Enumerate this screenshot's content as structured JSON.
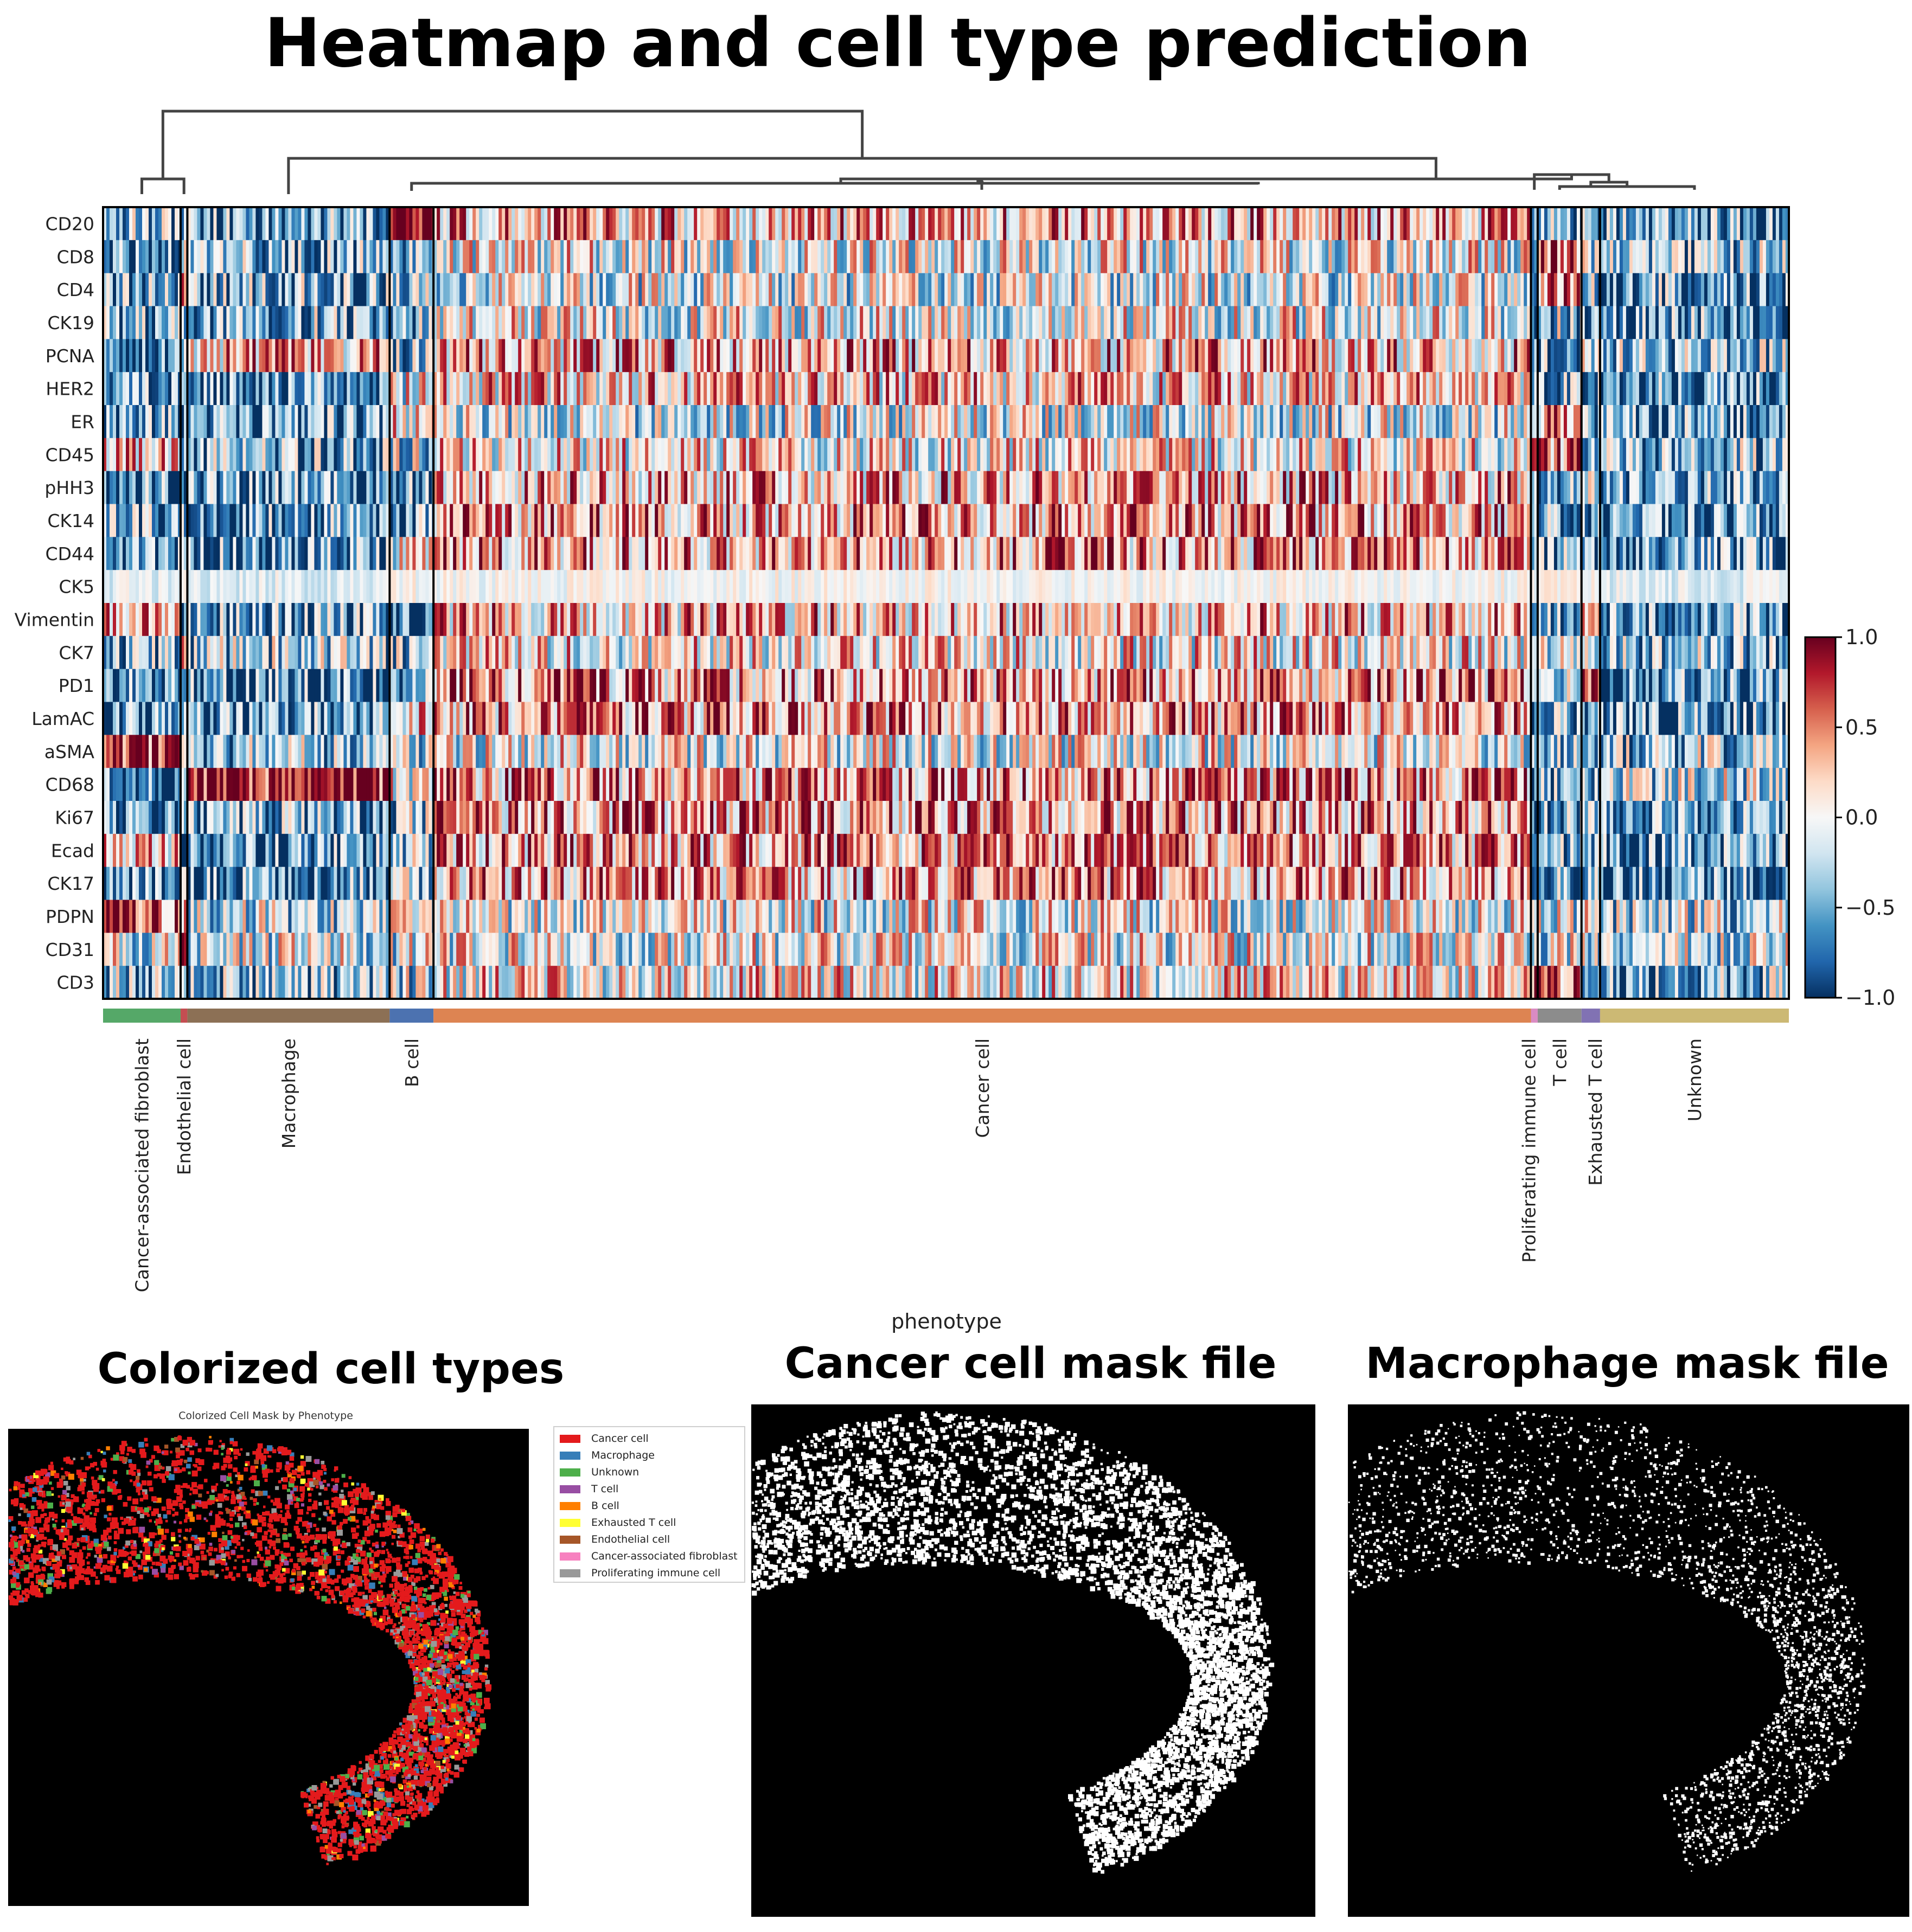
{
  "title": "Heatmap and cell type prediction",
  "chart_data": {
    "type": "heatmap",
    "rows": [
      "CD20",
      "CD8",
      "CD4",
      "CK19",
      "PCNA",
      "HER2",
      "ER",
      "CD45",
      "pHH3",
      "CK14",
      "CD44",
      "CK5",
      "Vimentin",
      "CK7",
      "PD1",
      "LamAC",
      "aSMA",
      "CD68",
      "Ki67",
      "Ecad",
      "CK17",
      "PDPN",
      "CD31",
      "CD3"
    ],
    "xlabel": "phenotype",
    "groups": [
      {
        "name": "Cancer-associated fibroblast",
        "fraction": 0.046,
        "color": "#55a868"
      },
      {
        "name": "Endothelial cell",
        "fraction": 0.004,
        "color": "#c44e52"
      },
      {
        "name": "Macrophage",
        "fraction": 0.12,
        "color": "#8c7055"
      },
      {
        "name": "B cell",
        "fraction": 0.026,
        "color": "#4c72b0"
      },
      {
        "name": "Cancer cell",
        "fraction": 0.651,
        "color": "#dd8452"
      },
      {
        "name": "Proliferating immune cell",
        "fraction": 0.004,
        "color": "#da8bc3"
      },
      {
        "name": "T cell",
        "fraction": 0.026,
        "color": "#8c8c8c"
      },
      {
        "name": "Exhausted T cell",
        "fraction": 0.011,
        "color": "#8172b3"
      },
      {
        "name": "Unknown",
        "fraction": 0.112,
        "color": "#ccb974"
      }
    ],
    "colorbar": {
      "min": -1.0,
      "max": 1.0,
      "ticks": [
        "1.0",
        "0.5",
        "0.0",
        "−0.5",
        "−1.0"
      ],
      "colormap": "RdBu_r"
    },
    "group_profiles": {
      "Cancer-associated fibroblast": {
        "aSMA": 0.8,
        "PDPN": 0.7,
        "Vimentin": 0.2,
        "CD20": -0.4,
        "CD8": -0.5,
        "CD4": -0.5,
        "CK19": -0.5,
        "PCNA": -0.6,
        "HER2": -0.6,
        "ER": -0.5,
        "CD45": 0.2,
        "pHH3": -0.6,
        "CK14": -0.5,
        "CD44": -0.5,
        "CK5": -0.1,
        "CK7": -0.4,
        "PD1": -0.6,
        "LamAC": -0.6,
        "CD68": -0.6,
        "Ki67": -0.6,
        "Ecad": 0.3,
        "CK17": -0.6,
        "CD31": -0.1,
        "CD3": -0.4
      },
      "Endothelial cell": {
        "CD31": 0.9,
        "CD4": 0.6,
        "PDPN": 0.5,
        "CK7": 0.5,
        "CD20": -0.6,
        "CD8": 0.1,
        "CK19": -0.5,
        "PCNA": -0.6,
        "HER2": -0.6,
        "ER": -0.5,
        "CD45": -0.5,
        "pHH3": -0.6,
        "CK14": -0.6,
        "CD44": -0.6,
        "CK5": -0.1,
        "Vimentin": -0.6,
        "PD1": -0.6,
        "LamAC": -0.6,
        "aSMA": -0.5,
        "CD68": -0.7,
        "Ki67": -0.6,
        "Ecad": -0.6,
        "CK17": -0.6,
        "CD3": -0.4
      },
      "Macrophage": {
        "CD68": 0.9,
        "PCNA": 0.3,
        "CD20": -0.5,
        "CD8": -0.4,
        "CD4": -0.4,
        "CK19": -0.4,
        "HER2": -0.6,
        "ER": -0.5,
        "CD45": -0.4,
        "pHH3": -0.6,
        "CK14": -0.5,
        "CD44": -0.6,
        "CK5": -0.1,
        "Vimentin": -0.5,
        "CK7": -0.3,
        "PD1": -0.6,
        "LamAC": -0.6,
        "aSMA": -0.3,
        "Ki67": -0.5,
        "Ecad": -0.6,
        "CK17": -0.6,
        "PDPN": -0.2,
        "CD31": -0.1,
        "CD3": -0.4
      },
      "B cell": {
        "CD20": 0.9,
        "HER2": 0.0,
        "ER": 0.1,
        "CD44": 0.0,
        "LamAC": 0.1,
        "CD68": 0.0,
        "CD8": -0.4,
        "CD4": -0.4,
        "CK19": -0.4,
        "PCNA": -0.4,
        "CD45": -0.2,
        "pHH3": -0.5,
        "CK14": -0.5,
        "CK5": 0.0,
        "Vimentin": -0.6,
        "CK7": -0.3,
        "PD1": -0.6,
        "aSMA": -0.3,
        "Ki67": -0.3,
        "Ecad": -0.3,
        "CK17": -0.3,
        "PDPN": -0.1,
        "CD31": -0.1,
        "CD3": -0.2
      },
      "Cancer cell": {
        "CD20": 0.3,
        "CD8": 0.0,
        "CD4": -0.1,
        "CK19": 0.0,
        "PCNA": 0.3,
        "HER2": 0.2,
        "ER": -0.1,
        "CD45": 0.1,
        "pHH3": 0.3,
        "CK14": 0.4,
        "CD44": 0.4,
        "CK5": 0.0,
        "Vimentin": 0.3,
        "CK7": 0.1,
        "PD1": 0.4,
        "LamAC": 0.4,
        "aSMA": 0.0,
        "CD68": 0.4,
        "Ki67": 0.4,
        "Ecad": 0.4,
        "CK17": 0.4,
        "PDPN": 0.0,
        "CD31": 0.0,
        "CD3": 0.1
      },
      "Proliferating immune cell": {
        "CD20": -0.5,
        "CD8": -0.3,
        "CD4": -0.3,
        "CK19": -0.3,
        "PCNA": -0.4,
        "HER2": -0.4,
        "ER": 0.2,
        "CD45": 0.3,
        "pHH3": -0.5,
        "CK14": -0.5,
        "CD44": -0.5,
        "CK5": 0.0,
        "Vimentin": -0.5,
        "CK7": -0.3,
        "PD1": -0.5,
        "LamAC": -0.5,
        "aSMA": -0.3,
        "CD68": -0.5,
        "Ki67": -0.5,
        "Ecad": -0.5,
        "CK17": -0.5,
        "PDPN": -0.1,
        "CD31": -0.1,
        "CD3": 0.8
      },
      "T cell": {
        "CD8": 0.7,
        "CD4": 0.5,
        "CD45": 0.6,
        "CD3": 0.6,
        "ER": 0.3,
        "CD20": -0.5,
        "CK19": -0.3,
        "PCNA": -0.5,
        "HER2": -0.5,
        "pHH3": -0.5,
        "CK14": -0.5,
        "CD44": -0.5,
        "CK5": 0.0,
        "Vimentin": -0.4,
        "CK7": -0.2,
        "PD1": -0.4,
        "LamAC": -0.5,
        "aSMA": -0.3,
        "CD68": -0.5,
        "Ki67": -0.5,
        "Ecad": -0.5,
        "CK17": -0.5,
        "PDPN": -0.1,
        "CD31": -0.1
      },
      "Exhausted T cell": {
        "PD1": 0.9,
        "Vimentin": 0.6,
        "CD8": -0.2,
        "CD45": -0.3,
        "CD20": -0.5,
        "CD4": -0.4,
        "CK19": -0.4,
        "PCNA": -0.2,
        "HER2": -0.5,
        "ER": -0.5,
        "pHH3": -0.3,
        "CK14": -0.5,
        "CD44": -0.5,
        "CK5": 0.0,
        "CK7": -0.3,
        "LamAC": -0.5,
        "aSMA": -0.3,
        "CD68": -0.3,
        "Ki67": -0.5,
        "Ecad": -0.5,
        "CK17": -0.5,
        "PDPN": -0.1,
        "CD31": -0.1,
        "CD3": -0.3
      },
      "Unknown": {
        "CD20": -0.5,
        "CD8": -0.4,
        "CD4": -0.5,
        "CK19": -0.5,
        "PCNA": -0.4,
        "HER2": -0.6,
        "ER": -0.5,
        "CD45": -0.4,
        "pHH3": -0.5,
        "CK14": -0.6,
        "CD44": -0.6,
        "CK5": -0.1,
        "Vimentin": -0.6,
        "CK7": -0.4,
        "PD1": -0.6,
        "LamAC": -0.6,
        "aSMA": -0.3,
        "CD68": -0.2,
        "Ki67": -0.6,
        "Ecad": -0.6,
        "CK17": -0.6,
        "PDPN": -0.2,
        "CD31": -0.1,
        "CD3": -0.4
      }
    }
  },
  "panels": {
    "colorized": {
      "title": "Colorized cell types",
      "subtitle": "Colorized Cell Mask by Phenotype",
      "legend": [
        {
          "label": "Cancer cell",
          "color": "#e41a1c"
        },
        {
          "label": "Macrophage",
          "color": "#377eb8"
        },
        {
          "label": "Unknown",
          "color": "#4daf4a"
        },
        {
          "label": "T cell",
          "color": "#984ea3"
        },
        {
          "label": "B cell",
          "color": "#ff7f00"
        },
        {
          "label": "Exhausted T cell",
          "color": "#ffff33"
        },
        {
          "label": "Endothelial cell",
          "color": "#a65628"
        },
        {
          "label": "Cancer-associated fibroblast",
          "color": "#f781bf"
        },
        {
          "label": "Proliferating immune cell",
          "color": "#999999"
        }
      ]
    },
    "cancer_mask": {
      "title": "Cancer cell mask file"
    },
    "macrophage_mask": {
      "title": "Macrophage mask file"
    }
  }
}
